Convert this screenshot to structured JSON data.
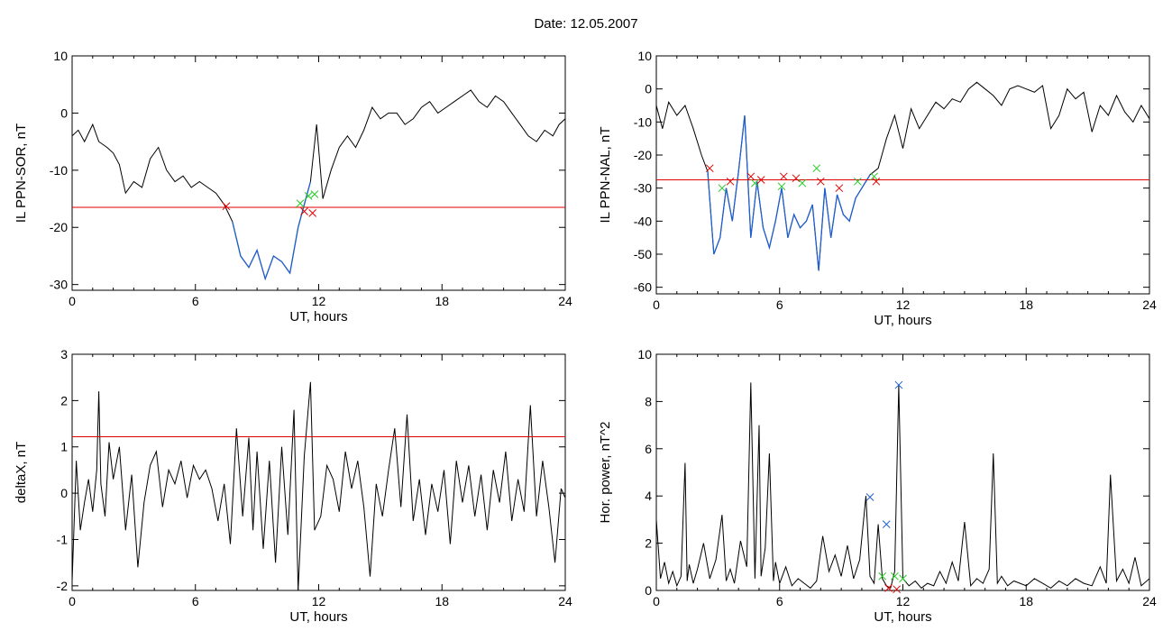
{
  "page": {
    "date_label": "Date:  12.05.2007"
  },
  "colors": {
    "trace": "#000000",
    "selected": "#1f5fd0",
    "threshold": "#e00000",
    "marker_red": "#e00000",
    "marker_green": "#22cc22",
    "marker_blue": "#2060d0"
  },
  "chart_data": [
    {
      "type": "line",
      "ylabel": "IL PPN-SOR, nT",
      "xlabel": "UT, hours",
      "xlim": [
        0,
        24
      ],
      "ylim": [
        -31,
        10
      ],
      "xticks": [
        0,
        6,
        12,
        18,
        24
      ],
      "yticks": [
        10,
        0,
        -10,
        -20,
        -30
      ],
      "threshold": -16.5,
      "highlight": [
        7.5,
        11.7
      ],
      "series": [
        {
          "x": [
            0,
            0.3,
            0.6,
            1.0,
            1.3,
            1.7,
            2.0,
            2.3,
            2.6,
            3.0,
            3.4,
            3.8,
            4.2,
            4.6,
            5.0,
            5.4,
            5.8,
            6.2,
            6.6,
            7.0,
            7.4,
            7.8,
            8.2,
            8.6,
            9.0,
            9.4,
            9.8,
            10.2,
            10.6,
            11.0,
            11.3,
            11.6,
            11.9,
            12.2,
            12.6,
            13.0,
            13.4,
            13.8,
            14.2,
            14.6,
            15.0,
            15.4,
            15.8,
            16.2,
            16.6,
            17.0,
            17.4,
            17.8,
            18.2,
            18.6,
            19.0,
            19.4,
            19.8,
            20.2,
            20.6,
            21.0,
            21.4,
            21.8,
            22.2,
            22.6,
            23.0,
            23.4,
            23.7,
            24.0
          ],
          "y": [
            -4,
            -3,
            -5,
            -2,
            -5,
            -6,
            -7,
            -9,
            -14,
            -12,
            -13,
            -8,
            -6,
            -10,
            -12,
            -11,
            -13,
            -12,
            -13,
            -14,
            -16,
            -19,
            -25,
            -27,
            -24,
            -29,
            -25,
            -26,
            -28,
            -20,
            -16,
            -12,
            -2,
            -15,
            -10,
            -6,
            -4,
            -6,
            -3,
            1,
            -1,
            0,
            0,
            -2,
            -1,
            1,
            2,
            0,
            1,
            2,
            3,
            4,
            2,
            1,
            3,
            2,
            0,
            -2,
            -4,
            -5,
            -3,
            -4,
            -2,
            -1
          ]
        }
      ],
      "markers": [
        {
          "x": 7.5,
          "y": -16.3,
          "color": "red"
        },
        {
          "x": 11.1,
          "y": -15.8,
          "color": "green"
        },
        {
          "x": 11.5,
          "y": -14.5,
          "color": "green"
        },
        {
          "x": 11.8,
          "y": -14.2,
          "color": "green"
        },
        {
          "x": 11.3,
          "y": -17.2,
          "color": "red"
        },
        {
          "x": 11.7,
          "y": -17.5,
          "color": "red"
        }
      ]
    },
    {
      "type": "line",
      "ylabel": "IL PPN-NAL, nT",
      "xlabel": "UT, hours",
      "xlim": [
        0,
        24
      ],
      "ylim": [
        -62,
        10
      ],
      "xticks": [
        0,
        6,
        12,
        18,
        24
      ],
      "yticks": [
        10,
        0,
        -10,
        -20,
        -30,
        -40,
        -50,
        -60
      ],
      "threshold": -27.5,
      "highlight": [
        2.5,
        10.7
      ],
      "series": [
        {
          "x": [
            0,
            0.3,
            0.6,
            1.0,
            1.4,
            1.8,
            2.2,
            2.5,
            2.8,
            3.1,
            3.4,
            3.7,
            4.0,
            4.3,
            4.6,
            4.9,
            5.2,
            5.5,
            5.8,
            6.1,
            6.4,
            6.7,
            7.0,
            7.3,
            7.6,
            7.9,
            8.2,
            8.5,
            8.8,
            9.1,
            9.4,
            9.7,
            10.0,
            10.4,
            10.8,
            11.2,
            11.6,
            12.0,
            12.4,
            12.8,
            13.2,
            13.6,
            14.0,
            14.4,
            14.8,
            15.2,
            15.6,
            16.0,
            16.4,
            16.8,
            17.2,
            17.6,
            18.0,
            18.4,
            18.8,
            19.2,
            19.6,
            20.0,
            20.4,
            20.8,
            21.2,
            21.6,
            22.0,
            22.4,
            22.8,
            23.2,
            23.6,
            24.0
          ],
          "y": [
            -5,
            -12,
            -4,
            -8,
            -5,
            -12,
            -20,
            -25,
            -50,
            -45,
            -30,
            -40,
            -25,
            -8,
            -45,
            -28,
            -42,
            -48,
            -40,
            -30,
            -45,
            -38,
            -42,
            -40,
            -35,
            -55,
            -30,
            -45,
            -32,
            -38,
            -40,
            -33,
            -30,
            -26,
            -24,
            -15,
            -8,
            -18,
            -6,
            -12,
            -8,
            -4,
            -6,
            -3,
            -4,
            0,
            2,
            0,
            -2,
            -5,
            0,
            1,
            0,
            -1,
            1,
            -12,
            -8,
            0,
            -3,
            -1,
            -13,
            -5,
            -8,
            -2,
            -7,
            -10,
            -5,
            -9
          ]
        }
      ],
      "markers": [
        {
          "x": 2.6,
          "y": -24,
          "color": "red"
        },
        {
          "x": 3.2,
          "y": -30,
          "color": "green"
        },
        {
          "x": 3.6,
          "y": -28,
          "color": "red"
        },
        {
          "x": 4.6,
          "y": -26.5,
          "color": "red"
        },
        {
          "x": 4.8,
          "y": -28.5,
          "color": "green"
        },
        {
          "x": 5.1,
          "y": -27.5,
          "color": "red"
        },
        {
          "x": 6.1,
          "y": -29.5,
          "color": "green"
        },
        {
          "x": 6.2,
          "y": -26.5,
          "color": "red"
        },
        {
          "x": 6.8,
          "y": -27,
          "color": "red"
        },
        {
          "x": 7.1,
          "y": -28.5,
          "color": "green"
        },
        {
          "x": 7.8,
          "y": -24,
          "color": "green"
        },
        {
          "x": 8.0,
          "y": -28,
          "color": "red"
        },
        {
          "x": 8.9,
          "y": -30,
          "color": "red"
        },
        {
          "x": 9.8,
          "y": -28,
          "color": "green"
        },
        {
          "x": 10.6,
          "y": -26.5,
          "color": "green"
        },
        {
          "x": 10.7,
          "y": -28,
          "color": "red"
        }
      ]
    },
    {
      "type": "line",
      "ylabel": "deltaX, nT",
      "xlabel": "UT, hours",
      "xlim": [
        0,
        24
      ],
      "ylim": [
        -2.1,
        3
      ],
      "xticks": [
        0,
        6,
        12,
        18,
        24
      ],
      "yticks": [
        3,
        2,
        1,
        0,
        -1,
        -2
      ],
      "threshold": 1.22,
      "series": [
        {
          "x": [
            0,
            0.2,
            0.4,
            0.6,
            0.8,
            1.0,
            1.2,
            1.3,
            1.4,
            1.6,
            1.8,
            2.0,
            2.3,
            2.6,
            2.9,
            3.2,
            3.5,
            3.8,
            4.1,
            4.4,
            4.7,
            5.0,
            5.3,
            5.6,
            5.9,
            6.2,
            6.5,
            6.8,
            7.1,
            7.4,
            7.7,
            8.0,
            8.3,
            8.6,
            8.8,
            9.0,
            9.3,
            9.6,
            9.9,
            10.2,
            10.5,
            10.8,
            11.0,
            11.3,
            11.6,
            11.8,
            12.1,
            12.4,
            12.7,
            13.0,
            13.3,
            13.6,
            13.9,
            14.2,
            14.5,
            14.8,
            15.1,
            15.4,
            15.7,
            16.0,
            16.3,
            16.6,
            16.9,
            17.2,
            17.5,
            17.8,
            18.1,
            18.4,
            18.7,
            19.0,
            19.3,
            19.6,
            19.9,
            20.2,
            20.5,
            20.8,
            21.1,
            21.4,
            21.7,
            22.0,
            22.3,
            22.6,
            22.9,
            23.2,
            23.5,
            23.8,
            24.0
          ],
          "y": [
            -1.9,
            0.7,
            -0.8,
            -0.2,
            0.3,
            -0.4,
            0.5,
            2.2,
            0.2,
            -0.5,
            1.1,
            0.3,
            1.0,
            -0.8,
            0.4,
            -1.6,
            -0.2,
            0.6,
            0.9,
            -0.3,
            0.5,
            0.2,
            0.7,
            -0.1,
            0.6,
            0.3,
            0.5,
            0.1,
            -0.6,
            0.2,
            -1.1,
            1.4,
            -0.5,
            1.2,
            -0.8,
            0.9,
            -1.2,
            0.7,
            -1.5,
            1.0,
            -0.9,
            1.8,
            -2.1,
            0.8,
            2.4,
            -0.8,
            -0.5,
            0.6,
            0.3,
            -0.4,
            0.9,
            0.1,
            0.7,
            -0.3,
            -1.8,
            0.2,
            -0.5,
            0.5,
            1.4,
            -0.3,
            1.7,
            -0.6,
            0.3,
            -0.9,
            0.2,
            -0.4,
            0.5,
            -1.1,
            0.7,
            -0.2,
            0.6,
            -0.5,
            0.4,
            -0.8,
            0.5,
            -0.2,
            0.9,
            -0.6,
            0.3,
            -0.4,
            1.9,
            -0.5,
            0.7,
            -0.3,
            -1.5,
            0.1,
            -0.1
          ]
        }
      ],
      "markers": []
    },
    {
      "type": "line",
      "ylabel": "Hor. power, nT^2",
      "xlabel": "UT, hours",
      "xlim": [
        0,
        24
      ],
      "ylim": [
        0,
        10
      ],
      "xticks": [
        0,
        6,
        12,
        18,
        24
      ],
      "yticks": [
        10,
        8,
        6,
        4,
        2,
        0
      ],
      "threshold": null,
      "series": [
        {
          "x": [
            0,
            0.2,
            0.4,
            0.6,
            0.8,
            1.0,
            1.2,
            1.4,
            1.5,
            1.6,
            1.8,
            2.0,
            2.3,
            2.6,
            2.9,
            3.2,
            3.4,
            3.6,
            3.8,
            4.1,
            4.4,
            4.6,
            4.8,
            5.0,
            5.1,
            5.3,
            5.5,
            5.7,
            5.8,
            6.0,
            6.3,
            6.6,
            6.9,
            7.2,
            7.5,
            7.8,
            8.1,
            8.4,
            8.7,
            9.0,
            9.3,
            9.6,
            9.9,
            10.2,
            10.4,
            10.6,
            10.8,
            11.0,
            11.2,
            11.4,
            11.6,
            11.8,
            12.0,
            12.3,
            12.6,
            12.9,
            13.2,
            13.5,
            13.8,
            14.1,
            14.4,
            14.7,
            15.0,
            15.3,
            15.6,
            15.9,
            16.2,
            16.4,
            16.6,
            16.8,
            17.1,
            17.4,
            17.7,
            18.0,
            18.4,
            18.8,
            19.2,
            19.6,
            20.0,
            20.4,
            20.8,
            21.2,
            21.6,
            21.9,
            22.1,
            22.4,
            22.7,
            23.0,
            23.3,
            23.6,
            24.0
          ],
          "y": [
            3.0,
            0.5,
            1.2,
            0.3,
            0.8,
            0.2,
            0.6,
            5.4,
            0.4,
            1.1,
            0.3,
            0.9,
            2.0,
            0.5,
            1.3,
            3.2,
            0.4,
            0.9,
            0.3,
            2.1,
            1.0,
            8.8,
            0.5,
            7.0,
            0.6,
            1.8,
            5.8,
            0.4,
            1.2,
            0.3,
            1.0,
            0.2,
            0.5,
            0.3,
            0.1,
            0.4,
            2.3,
            0.8,
            1.5,
            0.6,
            1.9,
            0.5,
            1.3,
            4.0,
            0.6,
            0.3,
            2.8,
            0.5,
            0.2,
            0.1,
            0.8,
            8.7,
            0.5,
            0.2,
            0.4,
            0.1,
            0.3,
            0.2,
            0.8,
            0.3,
            1.2,
            0.4,
            2.9,
            0.2,
            0.5,
            0.3,
            0.9,
            5.8,
            0.3,
            0.6,
            0.2,
            0.4,
            0.3,
            0.2,
            0.5,
            0.3,
            0.1,
            0.4,
            0.2,
            0.5,
            0.3,
            0.2,
            1.0,
            0.3,
            4.9,
            0.4,
            0.9,
            0.3,
            1.4,
            0.2,
            0.5
          ]
        }
      ],
      "markers": [
        {
          "x": 10.4,
          "y": 3.95,
          "color": "blue"
        },
        {
          "x": 11.2,
          "y": 2.8,
          "color": "blue"
        },
        {
          "x": 11.8,
          "y": 8.7,
          "color": "blue"
        },
        {
          "x": 11.0,
          "y": 0.6,
          "color": "green"
        },
        {
          "x": 11.6,
          "y": 0.6,
          "color": "green"
        },
        {
          "x": 12.0,
          "y": 0.5,
          "color": "green"
        },
        {
          "x": 11.3,
          "y": 0.1,
          "color": "red"
        },
        {
          "x": 11.7,
          "y": 0.05,
          "color": "red"
        }
      ]
    }
  ]
}
